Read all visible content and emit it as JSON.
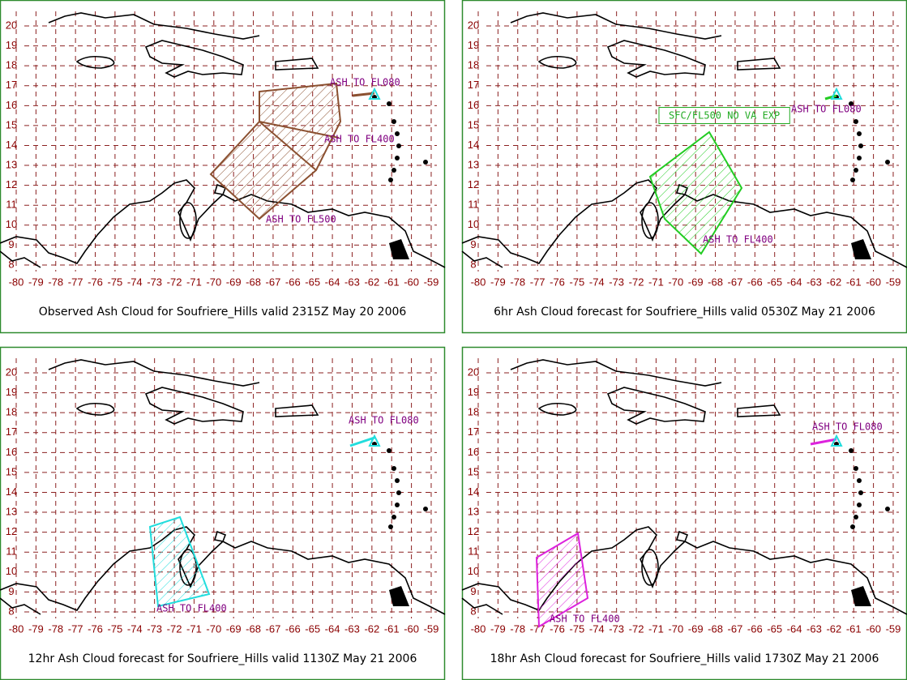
{
  "lat_ticks": [
    20,
    19,
    18,
    17,
    16,
    15,
    14,
    13,
    12,
    11,
    10,
    9,
    8
  ],
  "lon_ticks": [
    -80,
    -79,
    -78,
    -77,
    -76,
    -75,
    -74,
    -73,
    -72,
    -71,
    -70,
    -69,
    -68,
    -67,
    -66,
    -65,
    -64,
    -63,
    -62,
    -61,
    -60,
    -59
  ],
  "panels": [
    {
      "caption": "Observed Ash Cloud for Soufriere_Hills valid 2315Z May 20 2006",
      "color": "#8b5030",
      "labels": [
        {
          "text": "ASH TO FL080",
          "color": "#800080"
        },
        {
          "text": "ASH TO FL400",
          "color": "#800080"
        },
        {
          "text": "ASH TO FL500",
          "color": "#800080"
        }
      ]
    },
    {
      "caption": "6hr Ash Cloud forecast for Soufriere_Hills valid 0530Z May 21 2006",
      "color": "#22cc22",
      "labels": [
        {
          "text": "ASH TO FL080",
          "color": "#800080"
        },
        {
          "text": "SFC/FL500 NO VA EXP",
          "color": "#22aa22"
        },
        {
          "text": "ASH TO FL400",
          "color": "#800080"
        }
      ]
    },
    {
      "caption": "12hr Ash Cloud forecast for Soufriere_Hills valid 1130Z May 21 2006",
      "color": "#22dddd",
      "labels": [
        {
          "text": "ASH TO FL080",
          "color": "#800080"
        },
        {
          "text": "ASH TO FL400",
          "color": "#800080"
        }
      ]
    },
    {
      "caption": "18hr Ash Cloud forecast for Soufriere_Hills valid 1730Z May 21 2006",
      "color": "#dd22dd",
      "labels": [
        {
          "text": "ASH TO FL080",
          "color": "#800080"
        },
        {
          "text": "ASH TO FL400",
          "color": "#800080"
        }
      ]
    }
  ]
}
